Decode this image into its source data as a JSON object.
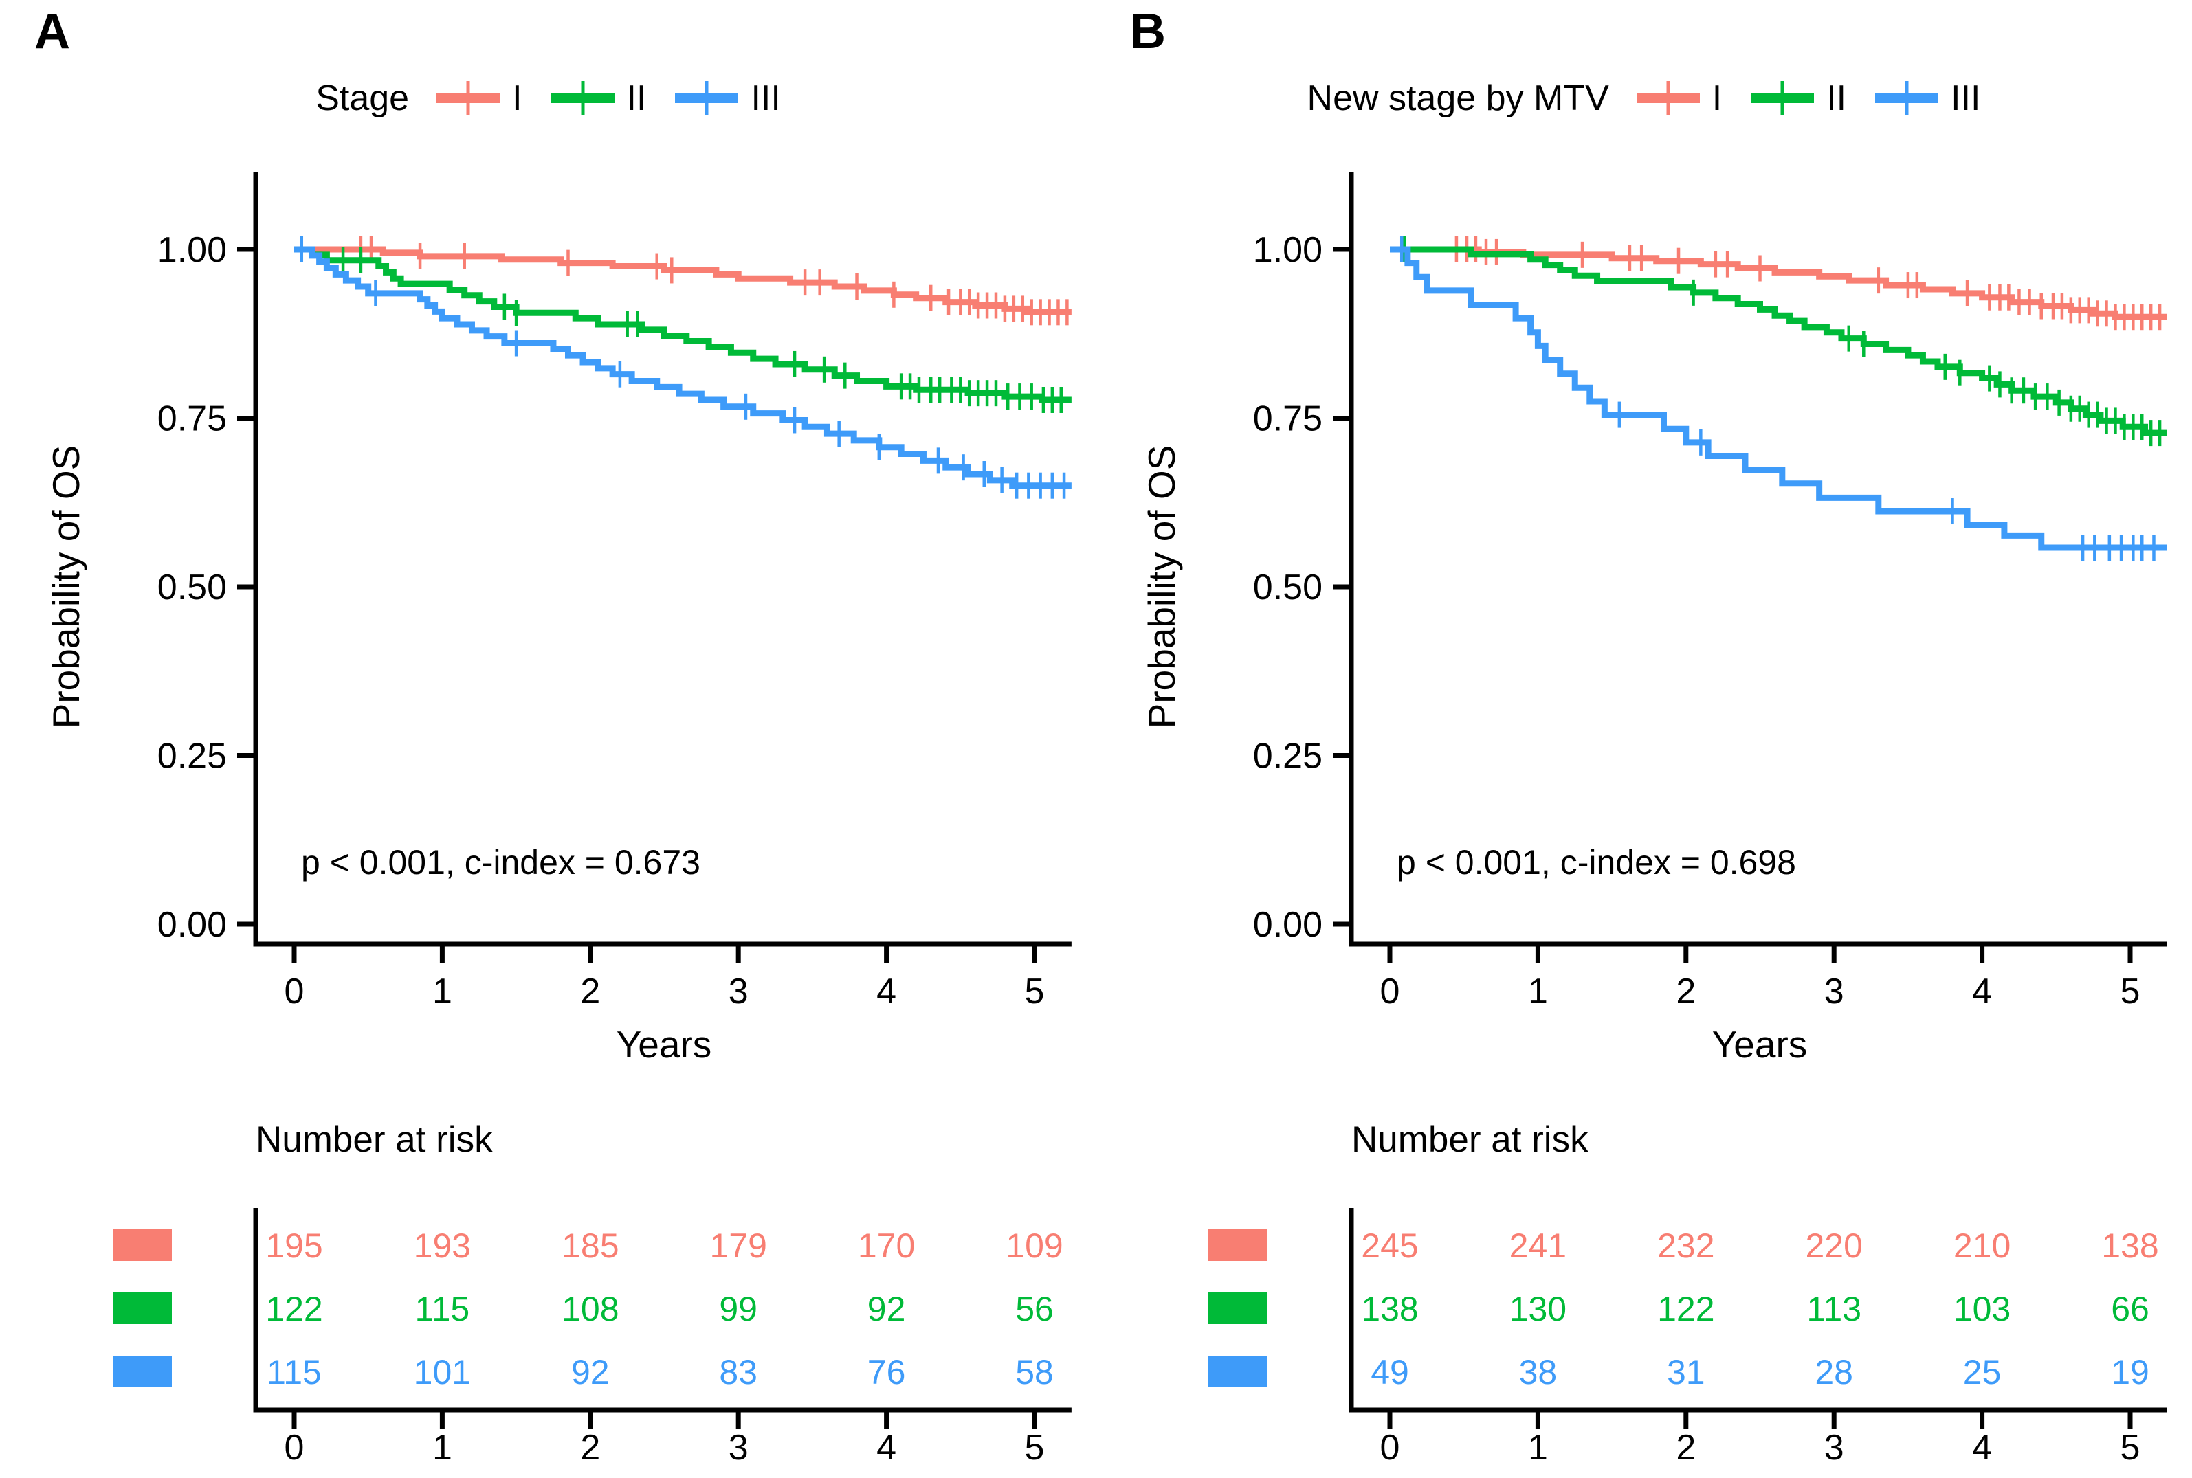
{
  "figure": {
    "background": "#ffffff",
    "axis_color": "#000000"
  },
  "chart_data": [
    {
      "type": "line",
      "subtype": "kaplan-meier",
      "panel_label": "A",
      "legend_title": "Stage",
      "legend_position": "top",
      "xlabel": "Years",
      "ylabel": "Probability of OS",
      "xlim": [
        0,
        5.25
      ],
      "ylim": [
        0,
        1
      ],
      "xticks": [
        0,
        1,
        2,
        3,
        4,
        5
      ],
      "ytick_labels": [
        "1.00",
        "0.75",
        "0.50",
        "0.25",
        "0.00"
      ],
      "yticks": [
        1.0,
        0.75,
        0.5,
        0.25,
        0.0
      ],
      "grid": false,
      "annotation": "p < 0.001, c-index = 0.673",
      "series": [
        {
          "name": "I",
          "color": "#F87E72",
          "steps": [
            [
              0,
              1
            ],
            [
              0.6,
              0.995
            ],
            [
              0.85,
              0.99
            ],
            [
              1.4,
              0.985
            ],
            [
              1.8,
              0.98
            ],
            [
              2.15,
              0.975
            ],
            [
              2.5,
              0.969
            ],
            [
              2.85,
              0.963
            ],
            [
              3.0,
              0.957
            ],
            [
              3.35,
              0.951
            ],
            [
              3.65,
              0.945
            ],
            [
              3.85,
              0.939
            ],
            [
              4.05,
              0.933
            ],
            [
              4.2,
              0.928
            ],
            [
              4.4,
              0.922
            ],
            [
              4.6,
              0.917
            ],
            [
              4.8,
              0.912
            ],
            [
              4.95,
              0.907
            ]
          ],
          "censor_times": [
            0.45,
            0.52,
            0.85,
            1.15,
            1.85,
            2.45,
            2.55,
            3.45,
            3.55,
            3.8,
            4.05,
            4.3,
            4.42,
            4.5,
            4.56,
            4.62,
            4.68,
            4.74,
            4.8,
            4.86,
            4.92,
            4.98,
            5.04,
            5.1,
            5.16,
            5.22
          ]
        },
        {
          "name": "II",
          "color": "#00BA38",
          "steps": [
            [
              0,
              1
            ],
            [
              0.12,
              0.992
            ],
            [
              0.22,
              0.984
            ],
            [
              0.57,
              0.975
            ],
            [
              0.62,
              0.966
            ],
            [
              0.67,
              0.957
            ],
            [
              0.72,
              0.949
            ],
            [
              1.05,
              0.94
            ],
            [
              1.15,
              0.932
            ],
            [
              1.25,
              0.923
            ],
            [
              1.35,
              0.915
            ],
            [
              1.5,
              0.906
            ],
            [
              1.9,
              0.898
            ],
            [
              2.05,
              0.889
            ],
            [
              2.35,
              0.881
            ],
            [
              2.5,
              0.872
            ],
            [
              2.65,
              0.864
            ],
            [
              2.8,
              0.855
            ],
            [
              2.95,
              0.847
            ],
            [
              3.1,
              0.838
            ],
            [
              3.25,
              0.83
            ],
            [
              3.45,
              0.822
            ],
            [
              3.65,
              0.813
            ],
            [
              3.8,
              0.805
            ],
            [
              4.0,
              0.797
            ],
            [
              4.2,
              0.792
            ],
            [
              4.55,
              0.787
            ],
            [
              4.8,
              0.782
            ],
            [
              5.05,
              0.777
            ]
          ],
          "censor_times": [
            0.33,
            0.45,
            1.42,
            1.5,
            2.25,
            2.32,
            3.38,
            3.58,
            3.72,
            4.1,
            4.16,
            4.22,
            4.3,
            4.36,
            4.44,
            4.5,
            4.56,
            4.62,
            4.68,
            4.74,
            4.82,
            4.9,
            4.98,
            5.06,
            5.12,
            5.18
          ]
        },
        {
          "name": "III",
          "color": "#3E9BF9",
          "steps": [
            [
              0,
              1
            ],
            [
              0.12,
              0.991
            ],
            [
              0.17,
              0.982
            ],
            [
              0.22,
              0.972
            ],
            [
              0.28,
              0.963
            ],
            [
              0.35,
              0.954
            ],
            [
              0.43,
              0.945
            ],
            [
              0.5,
              0.935
            ],
            [
              0.85,
              0.926
            ],
            [
              0.9,
              0.917
            ],
            [
              0.95,
              0.908
            ],
            [
              1.0,
              0.898
            ],
            [
              1.1,
              0.889
            ],
            [
              1.2,
              0.88
            ],
            [
              1.3,
              0.871
            ],
            [
              1.42,
              0.861
            ],
            [
              1.75,
              0.852
            ],
            [
              1.85,
              0.843
            ],
            [
              1.95,
              0.833
            ],
            [
              2.05,
              0.824
            ],
            [
              2.15,
              0.815
            ],
            [
              2.28,
              0.805
            ],
            [
              2.45,
              0.796
            ],
            [
              2.6,
              0.786
            ],
            [
              2.75,
              0.777
            ],
            [
              2.9,
              0.767
            ],
            [
              3.1,
              0.757
            ],
            [
              3.3,
              0.747
            ],
            [
              3.45,
              0.737
            ],
            [
              3.6,
              0.727
            ],
            [
              3.78,
              0.717
            ],
            [
              3.95,
              0.707
            ],
            [
              4.1,
              0.697
            ],
            [
              4.25,
              0.687
            ],
            [
              4.4,
              0.677
            ],
            [
              4.55,
              0.667
            ],
            [
              4.7,
              0.658
            ],
            [
              4.85,
              0.65
            ]
          ],
          "censor_times": [
            0.05,
            0.55,
            1.5,
            2.2,
            3.05,
            3.38,
            3.68,
            3.95,
            4.35,
            4.52,
            4.66,
            4.78,
            4.88,
            4.96,
            5.04,
            5.12,
            5.2
          ]
        }
      ],
      "number_at_risk": {
        "title": "Number at risk",
        "times": [
          0,
          1,
          2,
          3,
          4,
          5
        ],
        "rows": [
          {
            "name": "I",
            "color": "#F87E72",
            "values": [
              195,
              193,
              185,
              179,
              170,
              109
            ]
          },
          {
            "name": "II",
            "color": "#00BA38",
            "values": [
              122,
              115,
              108,
              99,
              92,
              56
            ]
          },
          {
            "name": "III",
            "color": "#3E9BF9",
            "values": [
              115,
              101,
              92,
              83,
              76,
              58
            ]
          }
        ]
      }
    },
    {
      "type": "line",
      "subtype": "kaplan-meier",
      "panel_label": "B",
      "legend_title": "New stage by MTV",
      "legend_position": "top",
      "xlabel": "Years",
      "ylabel": "Probability of OS",
      "xlim": [
        0,
        5.25
      ],
      "ylim": [
        0,
        1
      ],
      "xticks": [
        0,
        1,
        2,
        3,
        4,
        5
      ],
      "ytick_labels": [
        "1.00",
        "0.75",
        "0.50",
        "0.25",
        "0.00"
      ],
      "yticks": [
        1.0,
        0.75,
        0.5,
        0.25,
        0.0
      ],
      "grid": false,
      "annotation": "p < 0.001, c-index = 0.698",
      "series": [
        {
          "name": "I",
          "color": "#F87E72",
          "steps": [
            [
              0,
              1
            ],
            [
              0.6,
              0.996
            ],
            [
              0.9,
              0.992
            ],
            [
              1.5,
              0.987
            ],
            [
              1.8,
              0.983
            ],
            [
              2.1,
              0.978
            ],
            [
              2.35,
              0.972
            ],
            [
              2.6,
              0.966
            ],
            [
              2.9,
              0.96
            ],
            [
              3.1,
              0.954
            ],
            [
              3.35,
              0.947
            ],
            [
              3.6,
              0.941
            ],
            [
              3.8,
              0.935
            ],
            [
              4.0,
              0.929
            ],
            [
              4.2,
              0.922
            ],
            [
              4.4,
              0.916
            ],
            [
              4.6,
              0.91
            ],
            [
              4.75,
              0.905
            ],
            [
              4.9,
              0.9
            ]
          ],
          "censor_times": [
            0.45,
            0.52,
            0.58,
            0.65,
            0.72,
            1.3,
            1.62,
            1.7,
            1.95,
            2.2,
            2.28,
            2.5,
            3.3,
            3.5,
            3.56,
            3.9,
            4.05,
            4.12,
            4.18,
            4.25,
            4.32,
            4.4,
            4.48,
            4.54,
            4.6,
            4.66,
            4.72,
            4.78,
            4.84,
            4.9,
            4.96,
            5.02,
            5.08,
            5.14,
            5.2
          ]
        },
        {
          "name": "II",
          "color": "#00BA38",
          "steps": [
            [
              0,
              1
            ],
            [
              0.55,
              0.993
            ],
            [
              0.95,
              0.985
            ],
            [
              1.05,
              0.977
            ],
            [
              1.15,
              0.969
            ],
            [
              1.25,
              0.961
            ],
            [
              1.4,
              0.953
            ],
            [
              1.9,
              0.944
            ],
            [
              2.05,
              0.936
            ],
            [
              2.2,
              0.928
            ],
            [
              2.35,
              0.919
            ],
            [
              2.5,
              0.911
            ],
            [
              2.6,
              0.902
            ],
            [
              2.7,
              0.894
            ],
            [
              2.8,
              0.885
            ],
            [
              2.95,
              0.877
            ],
            [
              3.05,
              0.868
            ],
            [
              3.2,
              0.86
            ],
            [
              3.35,
              0.851
            ],
            [
              3.5,
              0.843
            ],
            [
              3.6,
              0.834
            ],
            [
              3.7,
              0.826
            ],
            [
              3.85,
              0.817
            ],
            [
              4.0,
              0.809
            ],
            [
              4.1,
              0.8
            ],
            [
              4.2,
              0.791
            ],
            [
              4.35,
              0.782
            ],
            [
              4.5,
              0.773
            ],
            [
              4.6,
              0.764
            ],
            [
              4.7,
              0.755
            ],
            [
              4.8,
              0.746
            ],
            [
              4.95,
              0.737
            ],
            [
              5.1,
              0.728
            ]
          ],
          "censor_times": [
            0.1,
            2.05,
            3.1,
            3.2,
            3.75,
            3.85,
            4.05,
            4.12,
            4.2,
            4.28,
            4.36,
            4.44,
            4.52,
            4.6,
            4.66,
            4.72,
            4.78,
            4.84,
            4.9,
            4.96,
            5.02,
            5.08,
            5.14,
            5.2
          ]
        },
        {
          "name": "III",
          "color": "#3E9BF9",
          "steps": [
            [
              0,
              1
            ],
            [
              0.12,
              0.98
            ],
            [
              0.18,
              0.959
            ],
            [
              0.25,
              0.939
            ],
            [
              0.55,
              0.918
            ],
            [
              0.85,
              0.898
            ],
            [
              0.95,
              0.877
            ],
            [
              1.0,
              0.857
            ],
            [
              1.05,
              0.836
            ],
            [
              1.15,
              0.816
            ],
            [
              1.25,
              0.795
            ],
            [
              1.35,
              0.775
            ],
            [
              1.45,
              0.755
            ],
            [
              1.85,
              0.734
            ],
            [
              2.0,
              0.714
            ],
            [
              2.15,
              0.694
            ],
            [
              2.4,
              0.673
            ],
            [
              2.65,
              0.653
            ],
            [
              2.9,
              0.632
            ],
            [
              3.3,
              0.612
            ],
            [
              3.9,
              0.592
            ],
            [
              4.15,
              0.576
            ],
            [
              4.4,
              0.558
            ]
          ],
          "censor_times": [
            0.08,
            1.55,
            2.1,
            3.8,
            4.68,
            4.76,
            4.86,
            4.94,
            5.02,
            5.08,
            5.16
          ]
        }
      ],
      "number_at_risk": {
        "title": "Number at risk",
        "times": [
          0,
          1,
          2,
          3,
          4,
          5
        ],
        "rows": [
          {
            "name": "I",
            "color": "#F87E72",
            "values": [
              245,
              241,
              232,
              220,
              210,
              138
            ]
          },
          {
            "name": "II",
            "color": "#00BA38",
            "values": [
              138,
              130,
              122,
              113,
              103,
              66
            ]
          },
          {
            "name": "III",
            "color": "#3E9BF9",
            "values": [
              49,
              38,
              31,
              28,
              25,
              19
            ]
          }
        ]
      }
    }
  ]
}
